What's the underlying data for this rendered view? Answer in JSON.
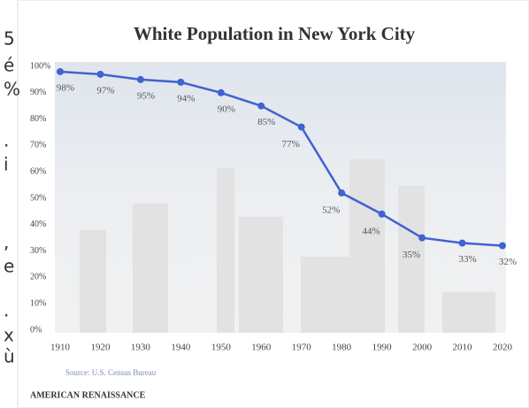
{
  "margin_text": [
    "5",
    "é",
    "%",
    ".",
    "i",
    ",",
    "e",
    ".",
    "x",
    "ù"
  ],
  "chart_data": {
    "type": "line",
    "title": "White Population in New York City",
    "x": [
      1910,
      1920,
      1930,
      1940,
      1950,
      1960,
      1970,
      1980,
      1990,
      2000,
      2010,
      2020
    ],
    "series": [
      {
        "name": "White Population",
        "color": "#3f63d0",
        "values": [
          98,
          97,
          95,
          94,
          90,
          85,
          77,
          52,
          44,
          35,
          33,
          32
        ],
        "value_labels": [
          "98%",
          "97%",
          "95%",
          "94%",
          "90%",
          "85%",
          "77%",
          "52%",
          "44%",
          "35%",
          "33%",
          "32%"
        ]
      }
    ],
    "xlim": [
      1910,
      2020
    ],
    "xticks": [
      1910,
      1920,
      1930,
      1940,
      1950,
      1960,
      1970,
      1980,
      1990,
      2000,
      2010,
      2020
    ],
    "ylim": [
      0,
      100
    ],
    "yticks": [
      {
        "value": 0,
        "label": "0%"
      },
      {
        "value": 10,
        "label": "10%"
      },
      {
        "value": 20,
        "label": "20%"
      },
      {
        "value": 30,
        "label": "30%"
      },
      {
        "value": 40,
        "label": "40%"
      },
      {
        "value": 50,
        "label": "50%"
      },
      {
        "value": 60,
        "label": "60%"
      },
      {
        "value": 70,
        "label": "70%"
      },
      {
        "value": 80,
        "label": "80%"
      },
      {
        "value": 90,
        "label": "90%"
      },
      {
        "value": 100,
        "label": "100%"
      }
    ],
    "source": "Source: U.S. Census Bureau",
    "publisher": "AMERICAN RENAISSANCE"
  }
}
